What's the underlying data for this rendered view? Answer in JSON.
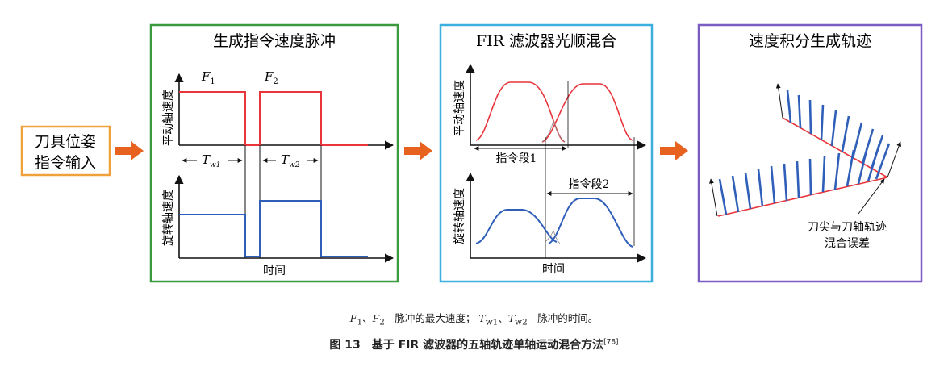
{
  "colors": {
    "panel1_border": "#3a9a3e",
    "panel2_border": "#3bb0de",
    "panel3_border": "#7b5cc2",
    "input_border": "#f0a13c",
    "arrow": "#e8621f",
    "red": "#e8343a",
    "blue": "#2f5fb8",
    "axis": "#111111"
  },
  "input_box": {
    "line1": "刀具位姿",
    "line2": "指令输入"
  },
  "panel1": {
    "title": "生成指令速度脉冲",
    "f1": "F",
    "f1_sub": "1",
    "f2": "F",
    "f2_sub": "2",
    "tw1": "T",
    "tw1_sub": "w1",
    "tw2": "T",
    "tw2_sub": "w2",
    "ylabel_top": "平动轴速度",
    "ylabel_bottom": "旋转轴速度",
    "xlabel": "时间"
  },
  "panel2": {
    "title": "FIR 滤波器光顺混合",
    "seg1": "指令段1",
    "seg2": "指令段2",
    "ylabel_top": "平动轴速度",
    "ylabel_bottom": "旋转轴速度",
    "xlabel": "时间"
  },
  "panel3": {
    "title": "速度积分生成轨迹",
    "annotation_line1": "刀尖与刀轴轨迹",
    "annotation_line2": "混合误差"
  },
  "caption": {
    "f1": "F",
    "f1_sub": "1",
    "sep1": "、",
    "f2": "F",
    "f2_sub": "2",
    "desc1": "—脉冲的最大速度；",
    "tw1": "T",
    "tw1_sub": "w1",
    "sep2": "、",
    "tw2": "T",
    "tw2_sub": "w2",
    "desc2": "—脉冲的时间。",
    "title": "图 13　基于 FIR 滤波器的五轴轨迹单轴运动混合方法",
    "ref": "[78]"
  }
}
